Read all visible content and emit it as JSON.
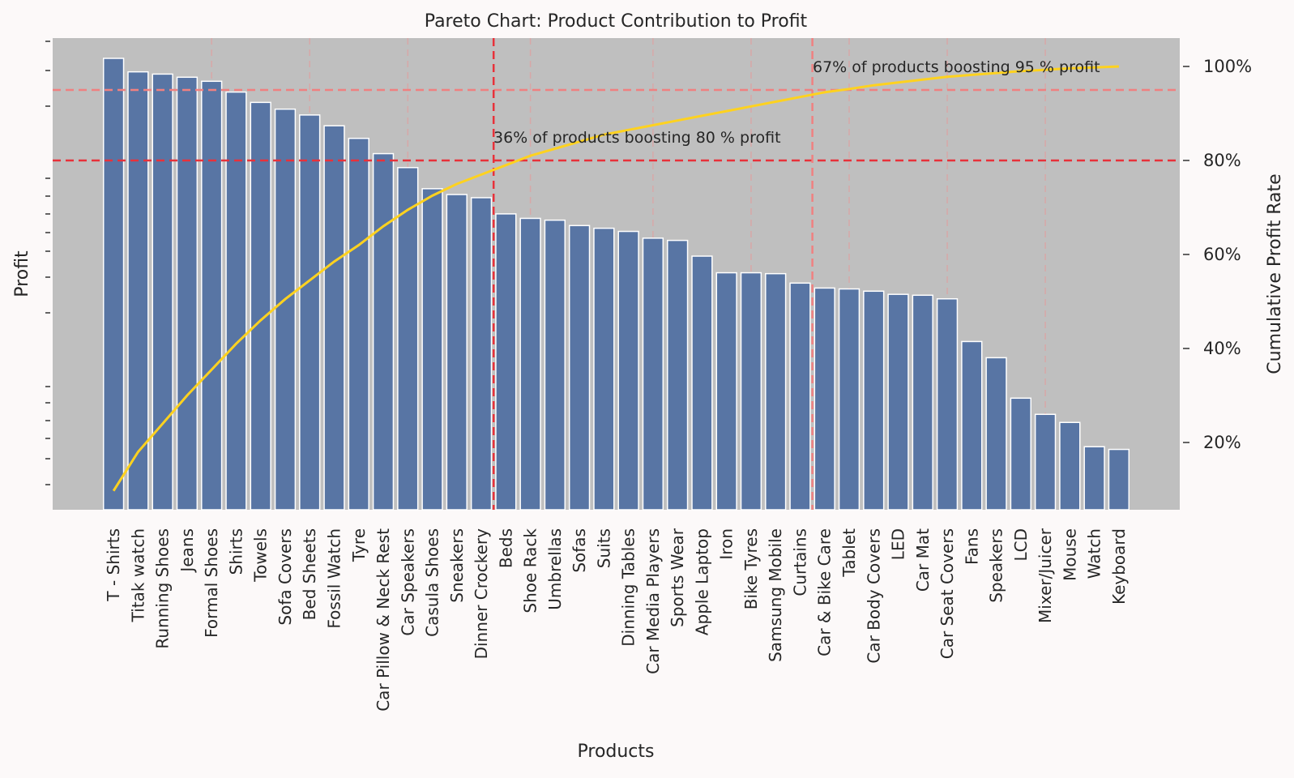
{
  "chart_data": {
    "type": "bar",
    "title": "Pareto Chart: Product Contribution to Profit",
    "xlabel": "Products",
    "ylabel": "Profit",
    "y2label": "Cumulative Profit Rate",
    "categories": [
      "T - Shirts",
      "Titak watch",
      "Running Shoes",
      "Jeans",
      "Formal Shoes",
      "Shirts",
      "Towels",
      "Sofa Covers",
      "Bed Sheets",
      "Fossil Watch",
      "Tyre",
      "Car Pillow & Neck Rest",
      "Car Speakers",
      "Casula Shoes",
      "Sneakers",
      "Dinner Crockery",
      "Beds",
      "Shoe Rack",
      "Umbrellas",
      "Sofas",
      "Suits",
      "Dinning Tables",
      "Car Media Players",
      "Sports Wear",
      "Apple Laptop",
      "Iron",
      "Bike Tyres",
      "Samsung Mobile",
      "Curtains",
      "Car & Bike Care",
      "Tablet",
      "Car Body Covers",
      "LED",
      "Car Mat",
      "Car Seat Covers",
      "Fans",
      "Speakers",
      "LCD",
      "Mixer/Juicer",
      "Mouse",
      "Watch",
      "Keyboard"
    ],
    "series": [
      {
        "type": "bar",
        "values": [
          9.7,
          9.4,
          9.35,
          9.28,
          9.19,
          8.95,
          8.72,
          8.57,
          8.44,
          8.2,
          7.92,
          7.58,
          7.27,
          6.8,
          6.67,
          6.6,
          6.24,
          6.14,
          6.1,
          5.98,
          5.92,
          5.85,
          5.7,
          5.65,
          5.3,
          4.93,
          4.93,
          4.91,
          4.7,
          4.59,
          4.57,
          4.52,
          4.45,
          4.43,
          4.35,
          3.4,
          3.04,
          2.14,
          1.78,
          1.6,
          1.06,
          1.0
        ]
      },
      {
        "type": "line",
        "axis": "right",
        "color": "#ffd21f",
        "values": [
          0.097,
          0.18,
          0.24,
          0.3,
          0.355,
          0.41,
          0.46,
          0.505,
          0.545,
          0.585,
          0.62,
          0.66,
          0.695,
          0.725,
          0.75,
          0.77,
          0.79,
          0.81,
          0.825,
          0.84,
          0.855,
          0.865,
          0.875,
          0.885,
          0.895,
          0.905,
          0.915,
          0.925,
          0.935,
          0.945,
          0.952,
          0.96,
          0.966,
          0.972,
          0.978,
          0.982,
          0.986,
          0.99,
          0.993,
          0.996,
          0.998,
          1.0
        ]
      }
    ],
    "y2lim": [
      0.05,
      1.05
    ],
    "y2ticks": [
      "20%",
      "40%",
      "60%",
      "80%",
      "100%"
    ],
    "y2tick_values": [
      0.2,
      0.4,
      0.6,
      0.8,
      1.0
    ],
    "reference_lines": {
      "horizontal": [
        0.8,
        0.95
      ],
      "vertical_at_category": [
        "Dinner Crockery",
        "Curtains"
      ]
    },
    "annotations": [
      "36% of products boosting 80 % profit",
      "67% of products boosting 95 % profit"
    ],
    "colors": {
      "bar": "#5875a4",
      "line": "#ffd21f",
      "ref80": "#e8313a",
      "ref95": "#f08080",
      "plot_bg": "#bfbfbf"
    },
    "grid": true
  }
}
